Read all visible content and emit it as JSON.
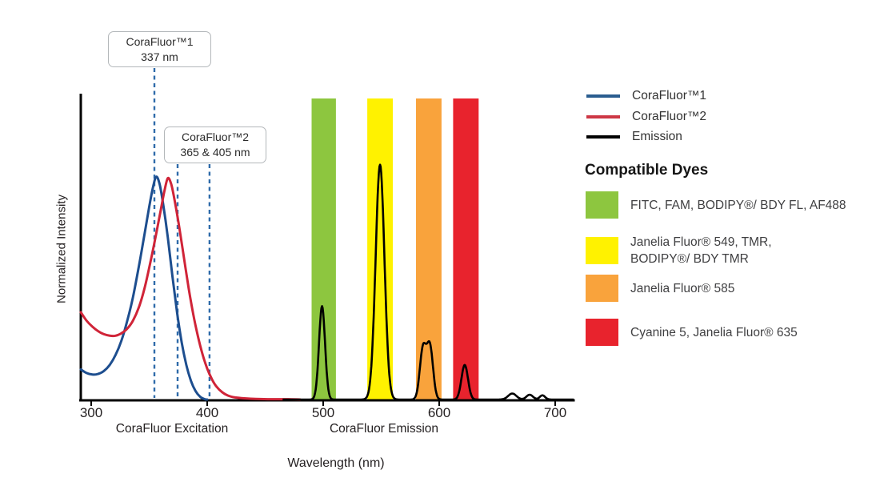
{
  "legend": {
    "items": [
      {
        "label": "CoraFluor™1",
        "color": "#2a5d8f"
      },
      {
        "label": "CoraFluor™2",
        "color": "#cd3745"
      },
      {
        "label": "Emission",
        "color": "#000000"
      }
    ]
  },
  "compatible_dyes": {
    "title": "Compatible Dyes",
    "items": [
      {
        "label": "FITC, FAM, BODIPY®/ BDY FL, AF488",
        "color": "#8dc63f"
      },
      {
        "label": "Janelia Fluor® 549, TMR,\nBODIPY®/ BDY TMR",
        "color": "#fff200"
      },
      {
        "label": "Janelia Fluor® 585",
        "color": "#f9a33c"
      },
      {
        "label": "Cyanine 5, Janelia Fluor® 635",
        "color": "#e8232d"
      }
    ]
  },
  "chart_data": {
    "type": "line",
    "title": "",
    "xlabel": "Wavelength (nm)",
    "ylabel": "Normalized Intensity",
    "xlim": [
      291,
      716
    ],
    "ylim": [
      0,
      1
    ],
    "x_ticks": [
      300,
      400,
      500,
      600,
      700
    ],
    "grid": false,
    "x_section_labels": [
      {
        "label": "CoraFluor Excitation"
      },
      {
        "label": "CoraFluor Emission"
      }
    ],
    "annotations": [
      {
        "title": "CoraFluor™1",
        "value": "337 nm"
      },
      {
        "title": "CoraFluor™2",
        "value": "365 & 405 nm"
      }
    ],
    "guide_color": "#2f6baa",
    "guide_lines_nm": [
      354.5,
      374.5,
      402
    ],
    "filter_bands": [
      {
        "dyes": "FITC, FAM, BODIPY®/ BDY FL, AF488",
        "color": "#8dc63f",
        "range_nm": [
          490,
          511
        ]
      },
      {
        "dyes": "Janelia Fluor® 549, TMR, BODIPY®/ BDY TMR",
        "color": "#fff200",
        "range_nm": [
          538,
          560
        ]
      },
      {
        "dyes": "Janelia Fluor® 585",
        "color": "#f9a33c",
        "range_nm": [
          580,
          602
        ]
      },
      {
        "dyes": "Cyanine 5, Janelia Fluor® 635",
        "color": "#e8232d",
        "range_nm": [
          612,
          634
        ]
      }
    ],
    "series": [
      {
        "name": "CoraFluor™1",
        "role": "excitation",
        "color": "#1d4e8f",
        "labeled_peak_nm": 337,
        "points": [
          [
            291,
            0.1
          ],
          [
            296,
            0.088
          ],
          [
            301,
            0.083
          ],
          [
            306,
            0.085
          ],
          [
            311,
            0.095
          ],
          [
            316,
            0.115
          ],
          [
            321,
            0.148
          ],
          [
            326,
            0.195
          ],
          [
            331,
            0.26
          ],
          [
            336,
            0.34
          ],
          [
            341,
            0.44
          ],
          [
            346,
            0.55
          ],
          [
            350,
            0.64
          ],
          [
            353,
            0.7
          ],
          [
            356,
            0.74
          ],
          [
            359,
            0.715
          ],
          [
            362,
            0.65
          ],
          [
            366,
            0.54
          ],
          [
            370,
            0.41
          ],
          [
            374,
            0.29
          ],
          [
            378,
            0.19
          ],
          [
            382,
            0.115
          ],
          [
            386,
            0.062
          ],
          [
            390,
            0.028
          ],
          [
            394,
            0.009
          ],
          [
            398,
            0.001
          ],
          [
            400,
            0
          ]
        ]
      },
      {
        "name": "CoraFluor™2",
        "role": "excitation",
        "color": "#d02438",
        "labeled_peaks_nm": [
          365,
          405
        ],
        "points": [
          [
            291,
            0.29
          ],
          [
            296,
            0.262
          ],
          [
            301,
            0.242
          ],
          [
            306,
            0.227
          ],
          [
            311,
            0.217
          ],
          [
            316,
            0.212
          ],
          [
            321,
            0.212
          ],
          [
            326,
            0.22
          ],
          [
            331,
            0.235
          ],
          [
            336,
            0.262
          ],
          [
            341,
            0.305
          ],
          [
            346,
            0.37
          ],
          [
            351,
            0.455
          ],
          [
            356,
            0.55
          ],
          [
            360,
            0.63
          ],
          [
            363,
            0.69
          ],
          [
            366,
            0.735
          ],
          [
            369,
            0.715
          ],
          [
            372,
            0.66
          ],
          [
            376,
            0.57
          ],
          [
            380,
            0.47
          ],
          [
            384,
            0.37
          ],
          [
            388,
            0.283
          ],
          [
            392,
            0.21
          ],
          [
            396,
            0.15
          ],
          [
            400,
            0.103
          ],
          [
            404,
            0.068
          ],
          [
            408,
            0.043
          ],
          [
            413,
            0.024
          ],
          [
            418,
            0.013
          ],
          [
            424,
            0.007
          ],
          [
            432,
            0.004
          ],
          [
            442,
            0.002
          ],
          [
            455,
            0.001
          ],
          [
            470,
            0.001
          ],
          [
            480,
            0
          ]
        ]
      },
      {
        "name": "Emission",
        "role": "emission",
        "color": "#000000",
        "range_nm": [
          465,
          716
        ],
        "peaks": [
          {
            "nm": 499,
            "height": 0.31,
            "sigma_nm": 2.6
          },
          {
            "nm": 549,
            "height": 0.78,
            "sigma_nm": 3.8
          },
          {
            "nm": 586,
            "height": 0.168,
            "sigma_nm": 2.7
          },
          {
            "nm": 592,
            "height": 0.175,
            "sigma_nm": 2.7
          },
          {
            "nm": 622,
            "height": 0.115,
            "sigma_nm": 2.8
          },
          {
            "nm": 663,
            "height": 0.02,
            "sigma_nm": 3.5
          },
          {
            "nm": 678,
            "height": 0.016,
            "sigma_nm": 2.8
          },
          {
            "nm": 689,
            "height": 0.014,
            "sigma_nm": 2.3
          }
        ]
      }
    ]
  }
}
